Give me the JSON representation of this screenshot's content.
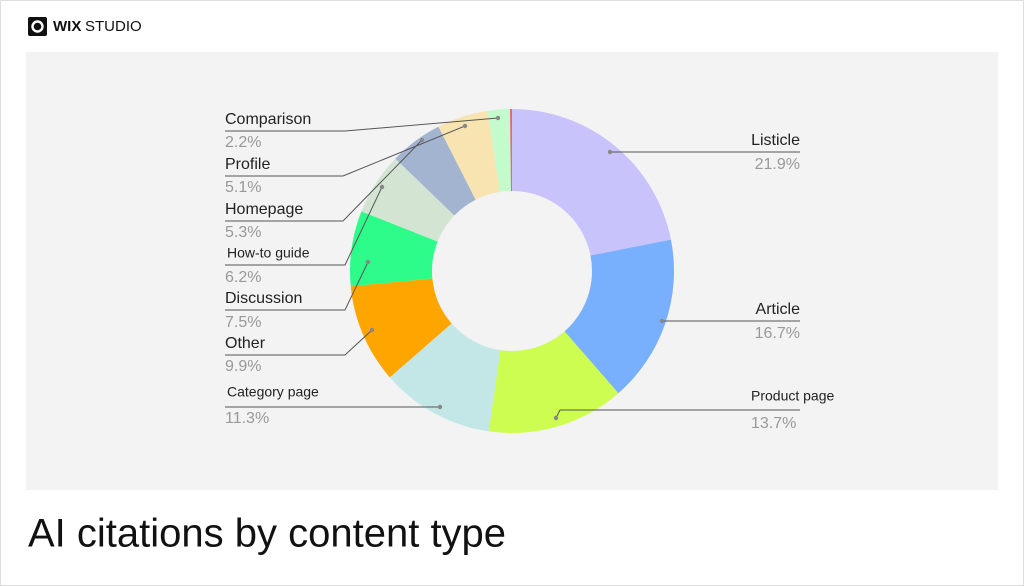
{
  "brand": [
    "WIX",
    "STUDIO"
  ],
  "chart_data": {
    "type": "donut",
    "title": "AI citations by content type",
    "categories": [
      "Listicle",
      "Article",
      "Product page",
      "Category page",
      "Other",
      "Discussion",
      "How-to guide",
      "Homepage",
      "Profile",
      "Comparison",
      null
    ],
    "values": [
      21.9,
      16.7,
      13.7,
      11.3,
      9.9,
      7.5,
      6.2,
      5.3,
      5.1,
      2.2,
      0.2
    ],
    "value_labels": [
      "21.9%",
      "16.7%",
      "13.7%",
      "11.3%",
      "9.9%",
      "7.5%",
      "6.2%",
      "5.3%",
      "5.1%",
      "2.2%",
      null
    ],
    "colors": [
      "#c9c3fb",
      "#79b0fd",
      "#cdfd50",
      "#c3e7e7",
      "#fea500",
      "#2efc8a",
      "#d3e4d3",
      "#a3b4d1",
      "#f7e4b1",
      "#c3fbcc",
      "#e06a7a"
    ]
  }
}
